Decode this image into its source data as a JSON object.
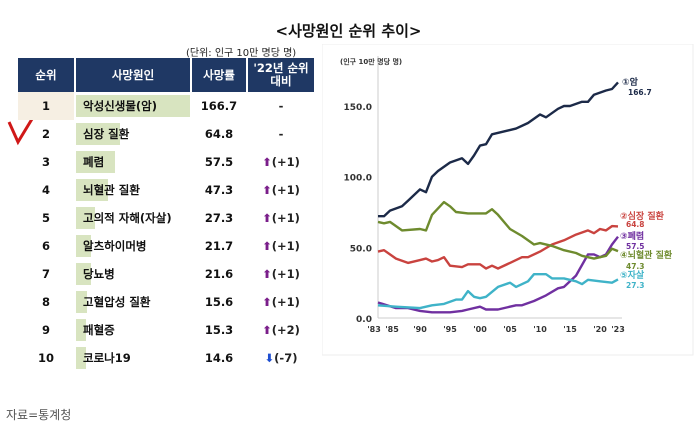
{
  "title": "<사망원인 순위 추이>",
  "table": {
    "unit": "(단위: 인구 10만 명당 명)",
    "headers": [
      "순위",
      "사망원인",
      "사망률",
      "'22년 순위 대비"
    ],
    "rows": [
      {
        "rank": "1",
        "cause": "악성신생물(암)",
        "rate": 166.7,
        "rate_text": "166.7",
        "change": "-",
        "dir": ""
      },
      {
        "rank": "2",
        "cause": "심장 질환",
        "rate": 64.8,
        "rate_text": "64.8",
        "change": "-",
        "dir": ""
      },
      {
        "rank": "3",
        "cause": "폐렴",
        "rate": 57.5,
        "rate_text": "57.5",
        "change": "(+1)",
        "dir": "up"
      },
      {
        "rank": "4",
        "cause": "뇌혈관 질환",
        "rate": 47.3,
        "rate_text": "47.3",
        "change": "(+1)",
        "dir": "up"
      },
      {
        "rank": "5",
        "cause": "고의적 자해(자살)",
        "rate": 27.3,
        "rate_text": "27.3",
        "change": "(+1)",
        "dir": "up"
      },
      {
        "rank": "6",
        "cause": "알츠하이머병",
        "rate": 21.7,
        "rate_text": "21.7",
        "change": "(+1)",
        "dir": "up"
      },
      {
        "rank": "7",
        "cause": "당뇨병",
        "rate": 21.6,
        "rate_text": "21.6",
        "change": "(+1)",
        "dir": "up"
      },
      {
        "rank": "8",
        "cause": "고혈압성 질환",
        "rate": 15.6,
        "rate_text": "15.6",
        "change": "(+1)",
        "dir": "up"
      },
      {
        "rank": "9",
        "cause": "패혈증",
        "rate": 15.3,
        "rate_text": "15.3",
        "change": "(+2)",
        "dir": "up"
      },
      {
        "rank": "10",
        "cause": "코로나19",
        "rate": 14.6,
        "rate_text": "14.6",
        "change": "(-7)",
        "dir": "down"
      }
    ]
  },
  "source": "자료=통계청",
  "chart_data": {
    "type": "line",
    "ylabel": "(인구 10만 명당 명)",
    "ylim": [
      0,
      170
    ],
    "yticks": [
      "0.0",
      "50.0",
      "100.0",
      "150.0"
    ],
    "xticks": [
      {
        "x": 1983,
        "label": "'83"
      },
      {
        "x": 1985,
        "label": "'85"
      },
      {
        "x": 1990,
        "label": "'90"
      },
      {
        "x": 1995,
        "label": "'95"
      },
      {
        "x": 2000,
        "label": "'00"
      },
      {
        "x": 2005,
        "label": "'05"
      },
      {
        "x": 2010,
        "label": "'10"
      },
      {
        "x": 2015,
        "label": "'15"
      },
      {
        "x": 2020,
        "label": "'20"
      },
      {
        "x": 2023,
        "label": "'23"
      }
    ],
    "xlim": [
      1983,
      2023
    ],
    "series": [
      {
        "name": "①암",
        "end_label": "166.7",
        "color": "#1c2a48",
        "x": [
          1983,
          1984,
          1985,
          1987,
          1988,
          1990,
          1991,
          1992,
          1993,
          1995,
          1997,
          1998,
          1999,
          2000,
          2001,
          2002,
          2004,
          2006,
          2008,
          2010,
          2011,
          2013,
          2014,
          2015,
          2017,
          2018,
          2019,
          2021,
          2022,
          2023
        ],
        "y": [
          72,
          72,
          76,
          79,
          83,
          91,
          89,
          100,
          104,
          110,
          113,
          109,
          115,
          122,
          123,
          130,
          132,
          134,
          138,
          144,
          142,
          148,
          150,
          150,
          153,
          153,
          158,
          161,
          162,
          166.7
        ]
      },
      {
        "name": "②심장 질환",
        "end_label": "64.8",
        "color": "#c9433f",
        "x": [
          1983,
          1984,
          1986,
          1988,
          1990,
          1991,
          1992,
          1993,
          1994,
          1995,
          1997,
          1998,
          2000,
          2001,
          2002,
          2003,
          2005,
          2007,
          2008,
          2010,
          2012,
          2014,
          2016,
          2018,
          2019,
          2020,
          2021,
          2022,
          2023
        ],
        "y": [
          47,
          48,
          42,
          39,
          41,
          42,
          40,
          41,
          43,
          37,
          36,
          38,
          38,
          35,
          37,
          35,
          39,
          43,
          43,
          47,
          52,
          55,
          59,
          62,
          60,
          63,
          62,
          65,
          64.8
        ]
      },
      {
        "name": "③폐렴",
        "end_label": "57.5",
        "color": "#7030a0",
        "x": [
          1983,
          1986,
          1988,
          1990,
          1992,
          1995,
          1997,
          1998,
          2000,
          2001,
          2003,
          2006,
          2007,
          2009,
          2011,
          2013,
          2014,
          2016,
          2018,
          2019,
          2020,
          2021,
          2022,
          2023
        ],
        "y": [
          11,
          7,
          7,
          5,
          4,
          4,
          5,
          6,
          8,
          6,
          6,
          9,
          9,
          12,
          16,
          21,
          22,
          30,
          45,
          45,
          43,
          45,
          52,
          57.5
        ]
      },
      {
        "name": "④뇌혈관 질환",
        "end_label": "47.3",
        "color": "#6e8b2e",
        "x": [
          1983,
          1984,
          1985,
          1986,
          1987,
          1990,
          1991,
          1992,
          1994,
          1995,
          1996,
          1998,
          2001,
          2002,
          2003,
          2005,
          2007,
          2009,
          2010,
          2012,
          2014,
          2016,
          2017,
          2019,
          2020,
          2021,
          2022,
          2023
        ],
        "y": [
          68,
          67,
          68,
          65,
          62,
          63,
          62,
          73,
          82,
          79,
          75,
          74,
          74,
          77,
          73,
          63,
          58,
          52,
          53,
          51,
          48,
          46,
          44,
          42,
          43,
          44,
          49,
          47.3
        ]
      },
      {
        "name": "⑤자살",
        "end_label": "27.3",
        "color": "#3fb3c8",
        "x": [
          1983,
          1986,
          1990,
          1992,
          1994,
          1996,
          1997,
          1998,
          1999,
          2000,
          2001,
          2003,
          2005,
          2006,
          2008,
          2009,
          2011,
          2012,
          2014,
          2016,
          2017,
          2018,
          2020,
          2022,
          2023
        ],
        "y": [
          9,
          8,
          7,
          9,
          10,
          13,
          13,
          19,
          15,
          14,
          15,
          22,
          25,
          22,
          26,
          31,
          31,
          28,
          28,
          26,
          24,
          27,
          26,
          25,
          27.3
        ]
      }
    ]
  }
}
